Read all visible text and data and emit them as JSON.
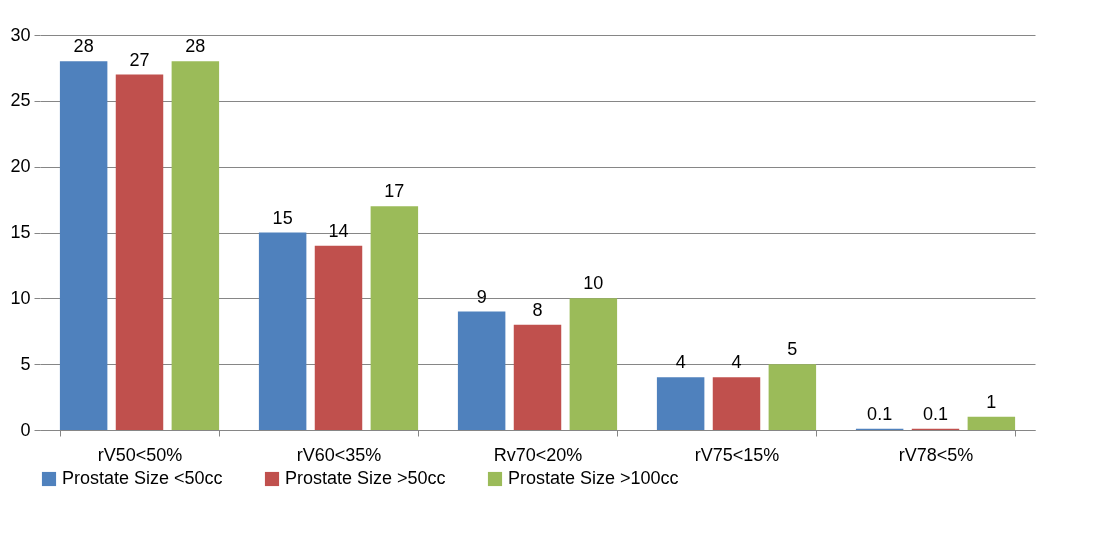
{
  "chart_data": {
    "type": "bar",
    "categories": [
      "rV50<50%",
      "rV60<35%",
      "Rv70<20%",
      "rV75<15%",
      "rV78<5%"
    ],
    "series": [
      {
        "name": "Prostate Size <50cc",
        "color": "#4f81bd",
        "values": [
          28,
          15,
          9,
          4,
          0.1
        ]
      },
      {
        "name": "Prostate Size >50cc",
        "color": "#c0504d",
        "values": [
          27,
          14,
          8,
          4,
          0.1
        ]
      },
      {
        "name": "Prostate Size >100cc",
        "color": "#9bbb59",
        "values": [
          28,
          17,
          10,
          5,
          1
        ]
      }
    ],
    "ylim": [
      0,
      30
    ],
    "yticks": [
      0,
      5,
      10,
      15,
      20,
      25,
      30
    ],
    "grid": "y",
    "legend": "bottom",
    "data_labels": true
  }
}
